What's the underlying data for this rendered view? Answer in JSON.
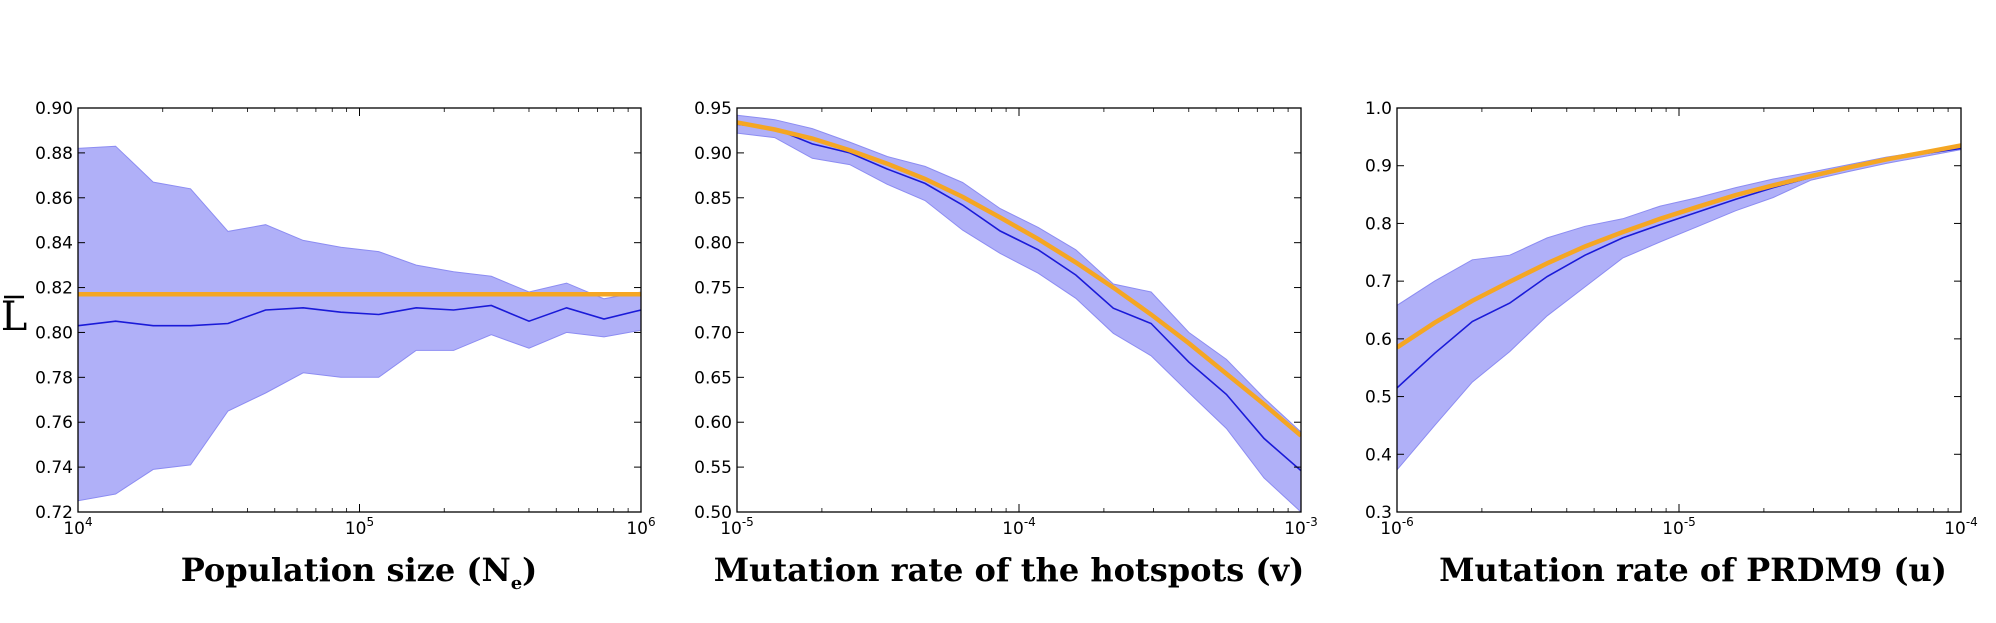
{
  "colors": {
    "band_fill": "#b0b0f8",
    "band_edge": "#8c8cf2",
    "mean_line": "#1a1ad8",
    "theory_line": "#f5a623",
    "axes": "#000000"
  },
  "chart_data": [
    {
      "type": "line",
      "xscale": "log",
      "xlim": [
        10000,
        1000000
      ],
      "ylim": [
        0.72,
        0.9
      ],
      "yticks": [
        "0.72",
        "0.74",
        "0.76",
        "0.78",
        "0.80",
        "0.82",
        "0.84",
        "0.86",
        "0.88",
        "0.90"
      ],
      "ytick_values": [
        0.72,
        0.74,
        0.76,
        0.78,
        0.8,
        0.82,
        0.84,
        0.86,
        0.88,
        0.9
      ],
      "xticks": [
        {
          "value": 10000,
          "base": "10",
          "exp": "4"
        },
        {
          "value": 100000,
          "base": "10",
          "exp": "5"
        },
        {
          "value": 1000000,
          "base": "10",
          "exp": "6"
        }
      ],
      "xlabel": "Population size (N",
      "xlabel_sub": "e",
      "xlabel_end": ")",
      "ylabel": "L",
      "grid": false,
      "x": [
        10000,
        13600,
        18500,
        25100,
        34100,
        46400,
        63100,
        85800,
        117000,
        159000,
        216000,
        294000,
        400000,
        544000,
        739000,
        1000000
      ],
      "series": [
        {
          "role": "band_upper",
          "values": [
            0.882,
            0.883,
            0.867,
            0.864,
            0.845,
            0.848,
            0.841,
            0.838,
            0.836,
            0.83,
            0.827,
            0.825,
            0.818,
            0.822,
            0.815,
            0.818
          ]
        },
        {
          "role": "band_lower",
          "values": [
            0.725,
            0.728,
            0.739,
            0.741,
            0.765,
            0.773,
            0.782,
            0.78,
            0.78,
            0.792,
            0.792,
            0.799,
            0.793,
            0.8,
            0.798,
            0.801
          ]
        },
        {
          "role": "mean",
          "values": [
            0.803,
            0.805,
            0.803,
            0.803,
            0.804,
            0.81,
            0.811,
            0.809,
            0.808,
            0.811,
            0.81,
            0.812,
            0.805,
            0.811,
            0.806,
            0.81
          ]
        },
        {
          "role": "theory",
          "values": [
            0.817,
            0.817,
            0.817,
            0.817,
            0.817,
            0.817,
            0.817,
            0.817,
            0.817,
            0.817,
            0.817,
            0.817,
            0.817,
            0.817,
            0.817,
            0.817
          ]
        }
      ]
    },
    {
      "type": "line",
      "xscale": "log",
      "xlim": [
        1e-05,
        0.001
      ],
      "ylim": [
        0.5,
        0.95
      ],
      "yticks": [
        "0.50",
        "0.55",
        "0.60",
        "0.65",
        "0.70",
        "0.75",
        "0.80",
        "0.85",
        "0.90",
        "0.95"
      ],
      "ytick_values": [
        0.5,
        0.55,
        0.6,
        0.65,
        0.7,
        0.75,
        0.8,
        0.85,
        0.9,
        0.95
      ],
      "xticks": [
        {
          "value": 1e-05,
          "base": "10",
          "exp": "-5"
        },
        {
          "value": 0.0001,
          "base": "10",
          "exp": "-4"
        },
        {
          "value": 0.001,
          "base": "10",
          "exp": "-3"
        }
      ],
      "xlabel": "Mutation rate of the hotspots (v)",
      "ylabel": "",
      "grid": false,
      "x": [
        1e-05,
        1.36e-05,
        1.85e-05,
        2.51e-05,
        3.41e-05,
        4.64e-05,
        6.31e-05,
        8.58e-05,
        0.000117,
        0.000159,
        0.000216,
        0.000294,
        0.0004,
        0.000544,
        0.000739,
        0.001
      ],
      "series": [
        {
          "role": "band_upper",
          "values": [
            0.942,
            0.937,
            0.927,
            0.912,
            0.896,
            0.885,
            0.867,
            0.838,
            0.817,
            0.792,
            0.754,
            0.745,
            0.7,
            0.67,
            0.627,
            0.589
          ]
        },
        {
          "role": "band_lower",
          "values": [
            0.922,
            0.917,
            0.894,
            0.887,
            0.865,
            0.847,
            0.814,
            0.788,
            0.766,
            0.738,
            0.699,
            0.674,
            0.633,
            0.593,
            0.538,
            0.5
          ]
        },
        {
          "role": "mean",
          "values": [
            0.932,
            0.927,
            0.91,
            0.9,
            0.882,
            0.866,
            0.842,
            0.813,
            0.792,
            0.764,
            0.727,
            0.71,
            0.667,
            0.631,
            0.582,
            0.546
          ]
        },
        {
          "role": "theory",
          "values": [
            0.934,
            0.926,
            0.916,
            0.903,
            0.888,
            0.871,
            0.851,
            0.828,
            0.804,
            0.778,
            0.75,
            0.72,
            0.688,
            0.654,
            0.62,
            0.585
          ]
        }
      ]
    },
    {
      "type": "line",
      "xscale": "log",
      "xlim": [
        1e-06,
        0.0001
      ],
      "ylim": [
        0.3,
        1.0
      ],
      "yticks": [
        "0.3",
        "0.4",
        "0.5",
        "0.6",
        "0.7",
        "0.8",
        "0.9",
        "1.0"
      ],
      "ytick_values": [
        0.3,
        0.4,
        0.5,
        0.6,
        0.7,
        0.8,
        0.9,
        1.0
      ],
      "xticks": [
        {
          "value": 1e-06,
          "base": "10",
          "exp": "-6"
        },
        {
          "value": 1e-05,
          "base": "10",
          "exp": "-5"
        },
        {
          "value": 0.0001,
          "base": "10",
          "exp": "-4"
        }
      ],
      "xlabel": "Mutation rate of PRDM9 (u)",
      "ylabel": "",
      "grid": false,
      "x": [
        1e-06,
        1.36e-06,
        1.85e-06,
        2.51e-06,
        3.41e-06,
        4.64e-06,
        6.31e-06,
        8.58e-06,
        1.17e-05,
        1.59e-05,
        2.16e-05,
        2.94e-05,
        4e-05,
        5.44e-05,
        7.39e-05,
        0.0001
      ],
      "series": [
        {
          "role": "band_upper",
          "values": [
            0.658,
            0.7,
            0.737,
            0.745,
            0.775,
            0.795,
            0.808,
            0.83,
            0.845,
            0.862,
            0.877,
            0.889,
            0.902,
            0.915,
            0.925,
            0.935
          ]
        },
        {
          "role": "band_lower",
          "values": [
            0.373,
            0.45,
            0.525,
            0.578,
            0.64,
            0.69,
            0.74,
            0.768,
            0.795,
            0.822,
            0.845,
            0.875,
            0.89,
            0.904,
            0.916,
            0.928
          ]
        },
        {
          "role": "mean",
          "values": [
            0.515,
            0.575,
            0.63,
            0.662,
            0.708,
            0.745,
            0.775,
            0.798,
            0.82,
            0.842,
            0.862,
            0.88,
            0.895,
            0.91,
            0.921,
            0.93
          ]
        },
        {
          "role": "theory",
          "values": [
            0.585,
            0.628,
            0.666,
            0.699,
            0.731,
            0.76,
            0.785,
            0.808,
            0.829,
            0.849,
            0.866,
            0.882,
            0.897,
            0.911,
            0.923,
            0.935
          ]
        }
      ]
    }
  ]
}
